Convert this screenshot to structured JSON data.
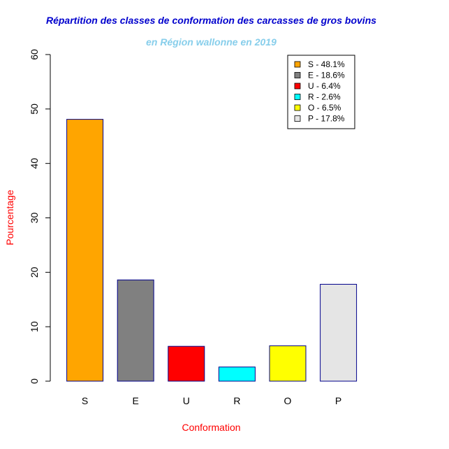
{
  "chart_data": {
    "type": "bar",
    "title": "Répartition des classes de conformation des carcasses de gros bovins",
    "subtitle": "en Région wallonne en 2019",
    "xlabel": "Conformation",
    "ylabel": "Pourcentage",
    "categories": [
      "S",
      "E",
      "U",
      "R",
      "O",
      "P"
    ],
    "values": [
      48.1,
      18.6,
      6.4,
      2.6,
      6.5,
      17.8
    ],
    "ylim": [
      0,
      60
    ],
    "yticks": [
      0,
      10,
      20,
      30,
      40,
      50,
      60
    ],
    "bar_colors": [
      "#FFA500",
      "#808080",
      "#FF0000",
      "#00FFFF",
      "#FFFF00",
      "#E5E5E5"
    ],
    "bar_border_color": "#00008B",
    "legend": {
      "position": "top-right",
      "entries": [
        "S - 48.1%",
        "E - 18.6%",
        "U - 6.4%",
        "R - 2.6%",
        "O - 6.5%",
        "P - 17.8%"
      ]
    },
    "grid": false
  },
  "colors": {
    "title": "#0000CD",
    "subtitle": "#87CEEB",
    "axis_labels": "#FF0000"
  }
}
